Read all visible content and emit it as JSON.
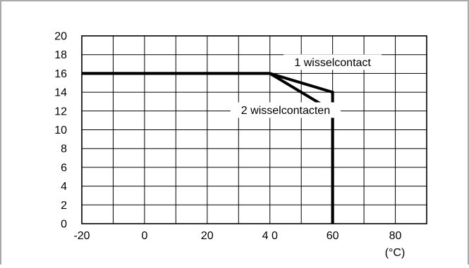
{
  "chart_data": {
    "type": "line",
    "xlabel": "",
    "ylabel": "",
    "unit_label": "(°C)",
    "xlim": [
      -20,
      90
    ],
    "ylim": [
      0,
      20
    ],
    "x_ticks": [
      -20,
      -10,
      0,
      10,
      20,
      30,
      40,
      50,
      60,
      70,
      80,
      90
    ],
    "x_tick_labels": [
      {
        "value": -20,
        "text": "-20"
      },
      {
        "value": 0,
        "text": "0"
      },
      {
        "value": 20,
        "text": "20"
      },
      {
        "value": 40,
        "text": "4 0"
      },
      {
        "value": 60,
        "text": "60"
      },
      {
        "value": 80,
        "text": "80"
      }
    ],
    "y_ticks": [
      0,
      2,
      4,
      6,
      8,
      10,
      12,
      14,
      16,
      18,
      20
    ],
    "y_tick_labels": [
      "0",
      "2",
      "4",
      "6",
      "8",
      "10",
      "12",
      "14",
      "16",
      "18",
      "20"
    ],
    "grid": true,
    "series": [
      {
        "name": "1 wisselcontact",
        "x": [
          -20,
          40,
          60,
          60
        ],
        "y": [
          16,
          16,
          14,
          0
        ],
        "label_anchor": {
          "x": 60,
          "y": 17.2
        }
      },
      {
        "name": "2 wisselcontacten",
        "x": [
          -20,
          40,
          60,
          60
        ],
        "y": [
          16,
          16,
          12,
          0
        ],
        "label_anchor": {
          "x": 45,
          "y": 12.1
        }
      }
    ],
    "colors": {
      "line": "#000000",
      "grid": "#000000",
      "frame_border": "#aaaaaa"
    }
  }
}
